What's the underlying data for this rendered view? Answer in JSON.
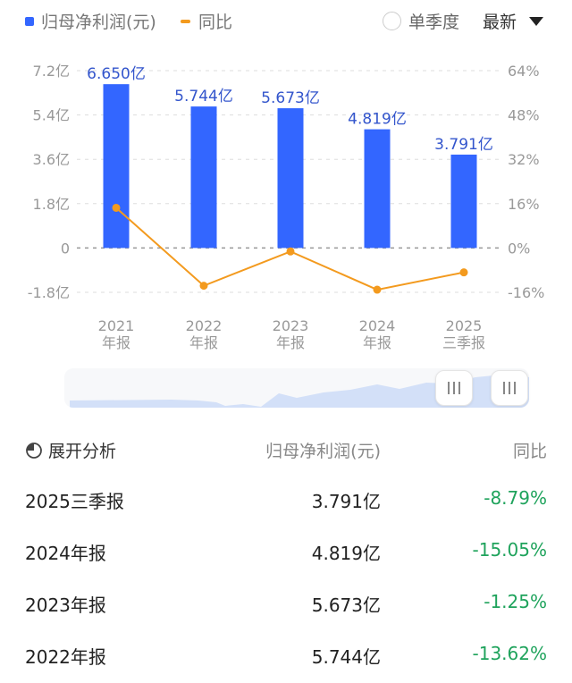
{
  "legend": {
    "series1_label": "归母净利润(元)",
    "series2_label": "同比",
    "single_quarter_label": "单季度",
    "single_quarter_checked": false,
    "period_select": "最新"
  },
  "colors": {
    "bar": "#3366ff",
    "line": "#f39a1e",
    "negative_yoy": "#1fa35c",
    "axis_text": "#999999",
    "bar_label": "#3355cc"
  },
  "chart_data": {
    "type": "bar+line",
    "categories": [
      "2021年报",
      "2022年报",
      "2023年报",
      "2024年报",
      "2025三季报"
    ],
    "x_tick_lines": [
      [
        "2021",
        "年报"
      ],
      [
        "2022",
        "年报"
      ],
      [
        "2023",
        "年报"
      ],
      [
        "2024",
        "年报"
      ],
      [
        "2025",
        "三季报"
      ]
    ],
    "series": [
      {
        "name": "归母净利润(元)",
        "type": "bar",
        "axis": "left",
        "values": [
          6.65,
          5.744,
          5.673,
          4.819,
          3.791
        ],
        "unit": "亿",
        "labels": [
          "6.650亿",
          "5.744亿",
          "5.673亿",
          "4.819亿",
          "3.791亿"
        ]
      },
      {
        "name": "同比",
        "type": "line",
        "axis": "right",
        "values": [
          14.5,
          -13.62,
          -1.25,
          -15.05,
          -8.79
        ],
        "unit": "%"
      }
    ],
    "left_axis": {
      "ticks": [
        "7.2亿",
        "5.4亿",
        "3.6亿",
        "1.8亿",
        "0",
        "-1.8亿"
      ],
      "values": [
        7.2,
        5.4,
        3.6,
        1.8,
        0,
        -1.8
      ],
      "ylim": [
        -1.8,
        7.2
      ]
    },
    "right_axis": {
      "ticks": [
        "64%",
        "48%",
        "32%",
        "16%",
        "0%",
        "-16%"
      ],
      "values": [
        64,
        48,
        32,
        16,
        0,
        -16
      ],
      "ylim": [
        -16,
        64
      ]
    },
    "grid": "dashed horizontal",
    "legend_position": "top-left"
  },
  "table": {
    "expand_label": "展开分析",
    "col_value_header": "归母净利润(元)",
    "col_yoy_header": "同比",
    "rows": [
      {
        "period": "2025三季报",
        "value": "3.791亿",
        "yoy": "-8.79%"
      },
      {
        "period": "2024年报",
        "value": "4.819亿",
        "yoy": "-15.05%"
      },
      {
        "period": "2023年报",
        "value": "5.673亿",
        "yoy": "-1.25%"
      },
      {
        "period": "2022年报",
        "value": "5.744亿",
        "yoy": "-13.62%"
      }
    ]
  }
}
